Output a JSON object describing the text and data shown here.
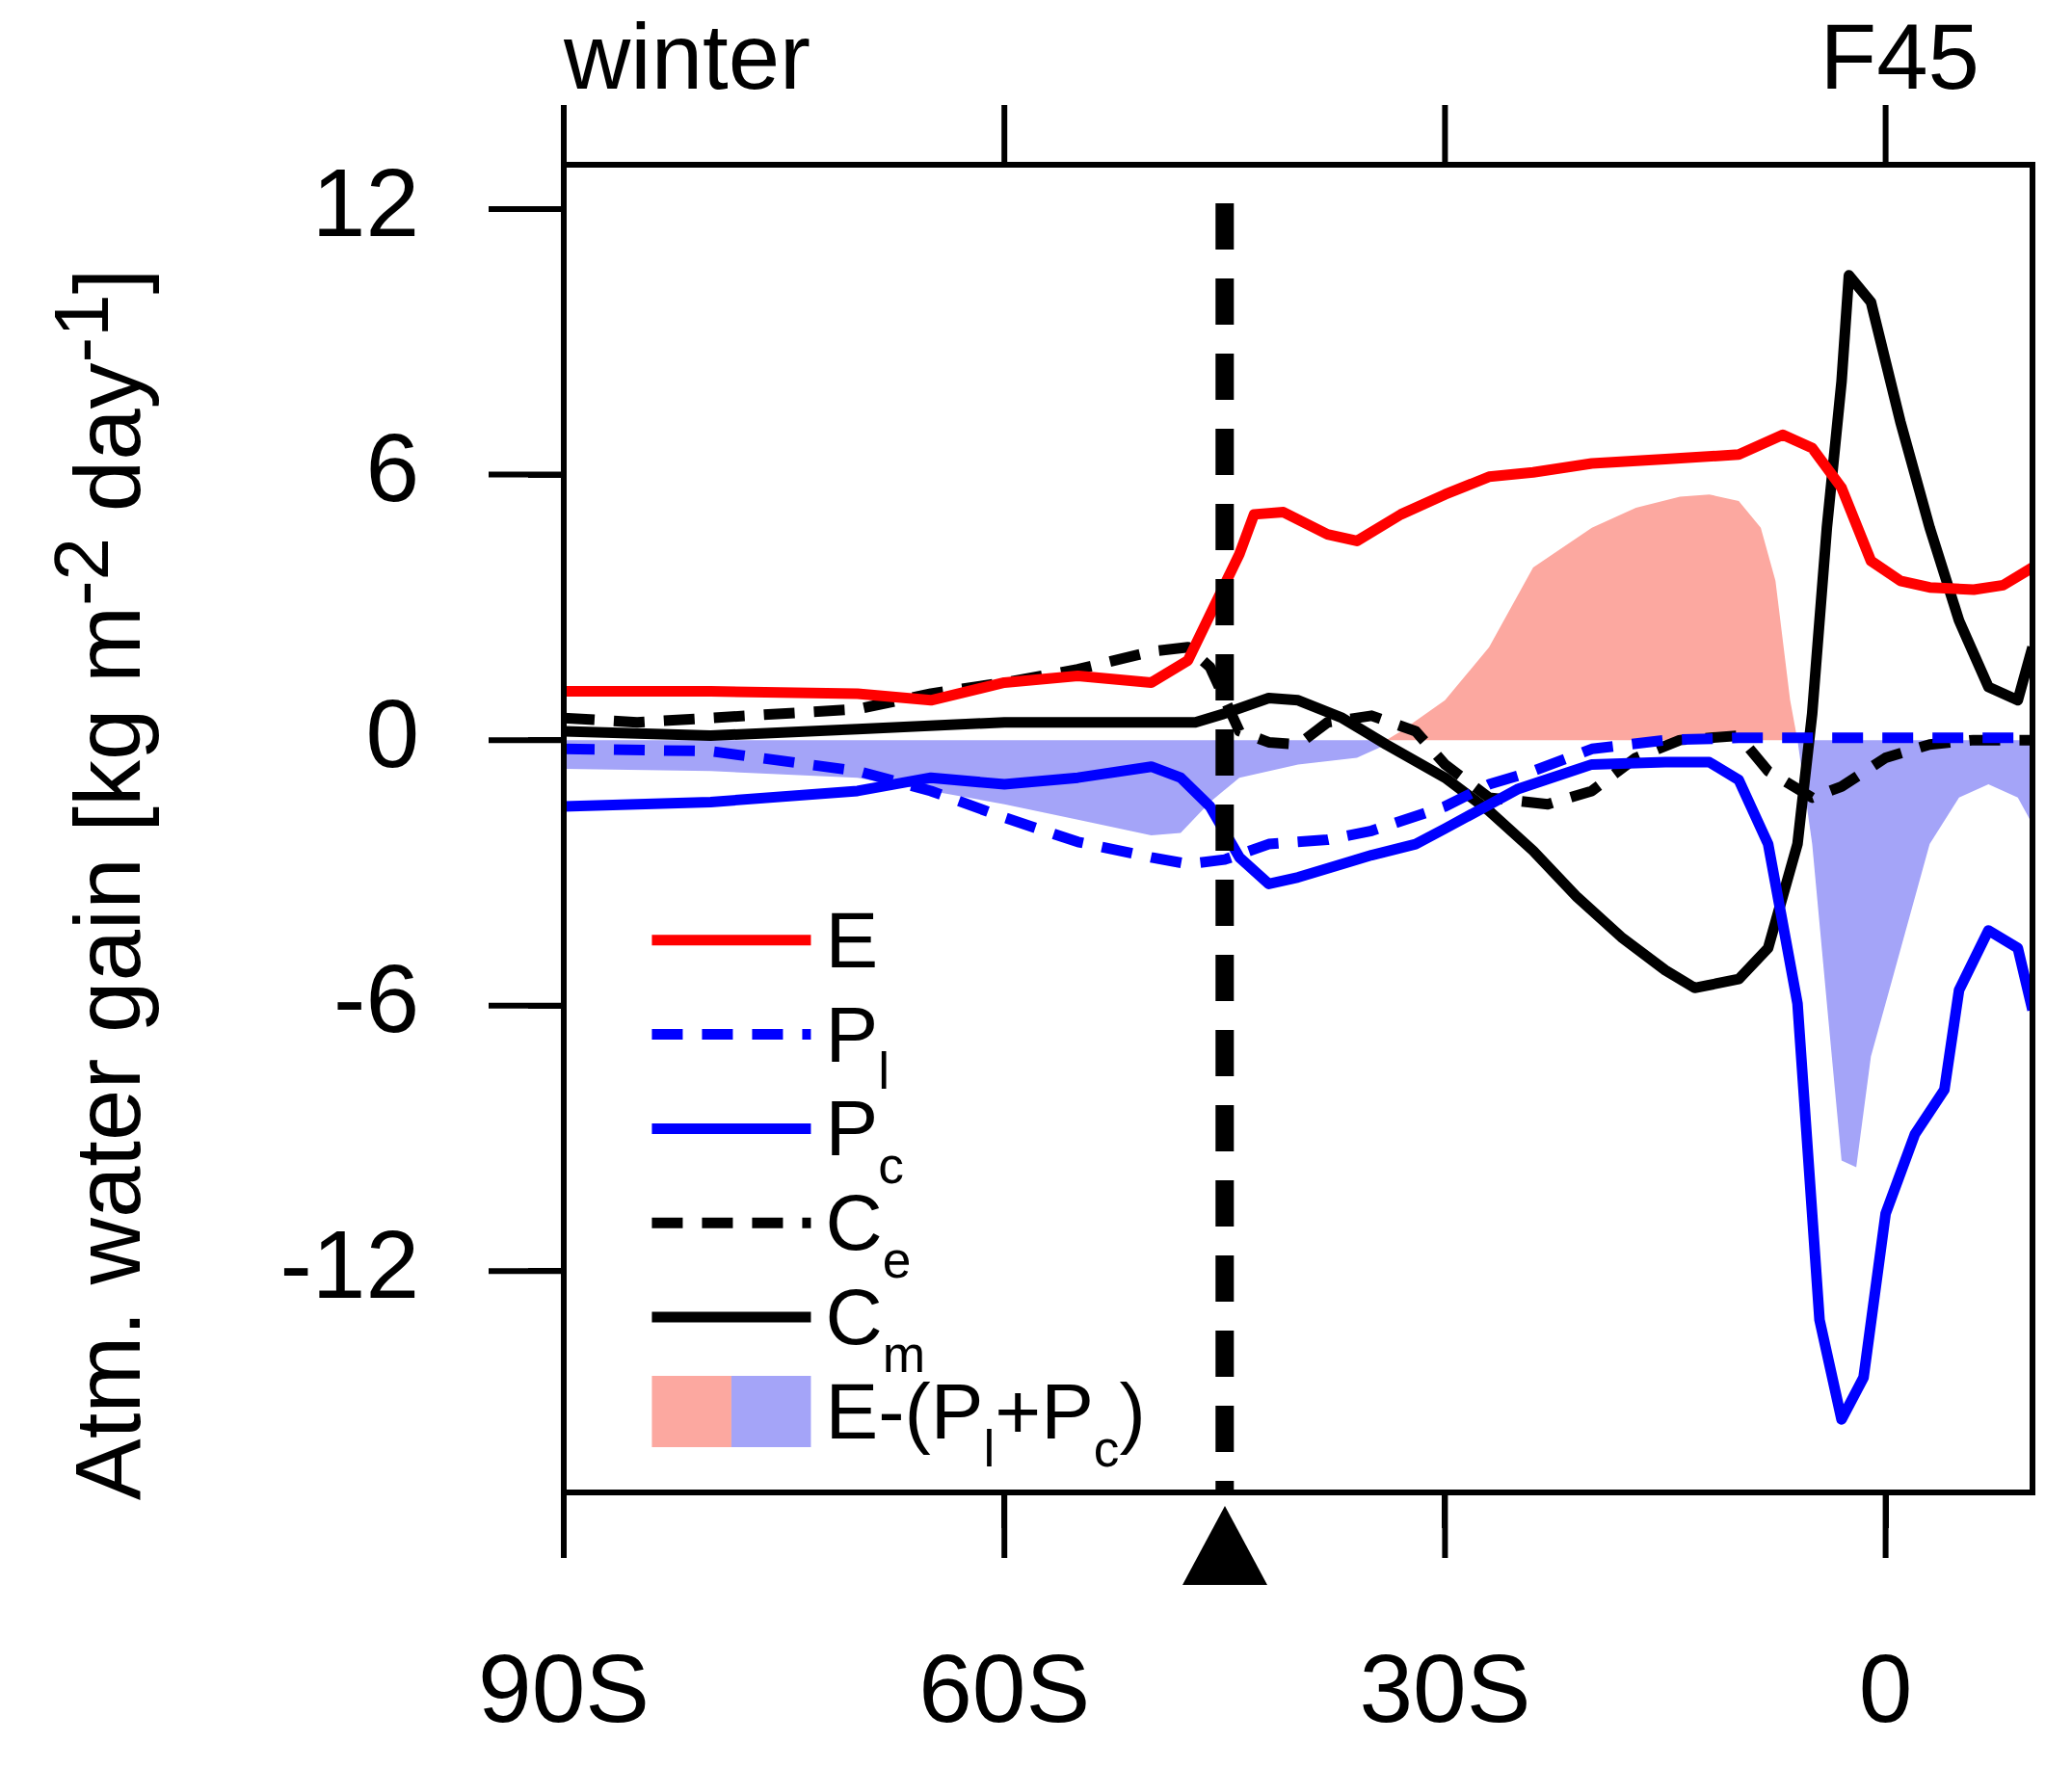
{
  "chart_data": {
    "type": "line",
    "title": "winter",
    "annotations": [
      "F45"
    ],
    "ylabel": "Atm. water gain [kg m$^{-2}$ day$^{-1}$]",
    "xlim": [
      -90,
      10
    ],
    "ylim": [
      -17,
      13
    ],
    "xticks": [
      {
        "value": -90,
        "label": "90S"
      },
      {
        "value": -60,
        "label": "60S"
      },
      {
        "value": -30,
        "label": "30S"
      },
      0
    ],
    "yticks": [
      12,
      6,
      0,
      -6,
      -12
    ],
    "grid": false,
    "legend": "bottom left",
    "marker": "none",
    "ref_lines": [
      {
        "axis": "x",
        "value": -45,
        "color": "#000000",
        "line_style": "dashed"
      }
    ],
    "series": [
      {
        "name": "E",
        "color": "#ff0000",
        "line_style": "solid",
        "x": [
          -90,
          -80,
          -70,
          -65,
          -60,
          -55,
          -50,
          -47.5,
          -44,
          -43,
          -41,
          -38,
          -36,
          -33,
          -30,
          -27,
          -24,
          -20,
          -15,
          -10,
          -7,
          -5,
          -3,
          -1,
          1,
          3,
          6,
          8,
          10
        ],
        "values": [
          1.1,
          1.1,
          1.05,
          0.9,
          1.3,
          1.45,
          1.3,
          1.8,
          4.2,
          5.1,
          5.15,
          4.65,
          4.5,
          5.1,
          5.55,
          5.95,
          6.05,
          6.25,
          6.35,
          6.45,
          6.9,
          6.6,
          5.7,
          4.05,
          3.6,
          3.45,
          3.4,
          3.5,
          3.9
        ]
      },
      {
        "name": "P$_{l}$",
        "color": "#0000ff",
        "line_style": "dashed",
        "x": [
          -90,
          -80,
          -70,
          -65,
          -60,
          -55,
          -50,
          -47.5,
          -45,
          -42,
          -38,
          -35,
          -30,
          -27,
          -24,
          -20,
          -15,
          -10,
          0,
          10
        ],
        "values": [
          -0.2,
          -0.25,
          -0.7,
          -1.15,
          -1.75,
          -2.3,
          -2.65,
          -2.8,
          -2.7,
          -2.35,
          -2.25,
          -2.05,
          -1.5,
          -1.0,
          -0.7,
          -0.2,
          0,
          0.05,
          0.05,
          0.05
        ]
      },
      {
        "name": "P$_{c}$",
        "color": "#0000ff",
        "line_style": "solid",
        "x": [
          -90,
          -80,
          -70,
          -65,
          -60,
          -55,
          -50,
          -48,
          -46,
          -44,
          -42,
          -40,
          -37,
          -35,
          -32,
          -30,
          -25,
          -20,
          -15,
          -12,
          -10,
          -8,
          -6,
          -4.5,
          -3,
          -1.5,
          0,
          2,
          4,
          5,
          7,
          9,
          10
        ],
        "values": [
          -1.5,
          -1.4,
          -1.15,
          -0.85,
          -1.0,
          -0.85,
          -0.6,
          -0.85,
          -1.5,
          -2.65,
          -3.25,
          -3.1,
          -2.8,
          -2.6,
          -2.35,
          -2.0,
          -1.1,
          -0.55,
          -0.5,
          -0.5,
          -0.9,
          -2.35,
          -5.95,
          -13.1,
          -15.35,
          -14.4,
          -10.7,
          -8.9,
          -7.9,
          -5.65,
          -4.3,
          -4.7,
          -6.1
        ]
      },
      {
        "name": "C$_{e}$",
        "color": "#000000",
        "line_style": "dashed",
        "x": [
          -90,
          -85,
          -80,
          -70,
          -65,
          -60,
          -55,
          -50,
          -47.5,
          -46,
          -44,
          -42,
          -40,
          -38,
          -35,
          -32,
          -30,
          -27,
          -23,
          -20,
          -17,
          -14,
          -10,
          -8,
          -5,
          -3,
          0,
          3,
          6,
          10
        ],
        "values": [
          0.5,
          0.4,
          0.5,
          0.7,
          1.05,
          1.3,
          1.6,
          2.0,
          2.1,
          1.65,
          0.2,
          -0.05,
          -0.1,
          0.4,
          0.55,
          0.2,
          -0.55,
          -1.3,
          -1.45,
          -1.15,
          -0.4,
          0,
          0.1,
          -0.7,
          -1.3,
          -1.05,
          -0.4,
          -0.1,
          0,
          0
        ]
      },
      {
        "name": "C$_{m}$",
        "color": "#000000",
        "line_style": "solid",
        "x": [
          -90,
          -80,
          -70,
          -60,
          -50,
          -47,
          -45,
          -42,
          -40,
          -37,
          -34,
          -30,
          -27,
          -24,
          -21,
          -18,
          -15,
          -13,
          -10,
          -8,
          -6,
          -5,
          -4,
          -3,
          -2.5,
          -1,
          1,
          3,
          5,
          7,
          9,
          10
        ],
        "values": [
          0.2,
          0.1,
          0.25,
          0.4,
          0.4,
          0.4,
          0.6,
          0.95,
          0.9,
          0.5,
          -0.1,
          -0.85,
          -1.6,
          -2.5,
          -3.55,
          -4.45,
          -5.2,
          -5.6,
          -5.4,
          -4.7,
          -2.35,
          0.6,
          4.8,
          8.1,
          10.5,
          9.9,
          7.2,
          4.8,
          2.7,
          1.2,
          0.9,
          2.1
        ]
      },
      {
        "name": "E-(P$_{l}$+P$_{c}$)",
        "type": "area",
        "color": "#fca8a0",
        "x": [
          -34,
          -33,
          -30,
          -27,
          -24,
          -20,
          -17,
          -14,
          -12,
          -10,
          -8.5,
          -7.5,
          -6.5,
          -6
        ],
        "values": [
          0,
          0.2,
          0.9,
          2.1,
          3.9,
          4.8,
          5.25,
          5.5,
          5.55,
          5.4,
          4.8,
          3.6,
          0.9,
          0
        ]
      },
      {
        "type": "area",
        "color": "#a4a4f8",
        "x": [
          -90,
          -80,
          -70,
          -60,
          -55,
          -50,
          -48,
          -46,
          -44,
          -40,
          -36,
          -34,
          -33,
          -6,
          -5,
          -4,
          -3,
          -2,
          -1,
          1,
          3,
          5,
          7,
          9,
          10
        ],
        "values": [
          -0.65,
          -0.7,
          -0.85,
          -1.45,
          -1.8,
          -2.15,
          -2.1,
          -1.4,
          -0.85,
          -0.55,
          -0.4,
          -0.1,
          null,
          0,
          -2.35,
          -5.95,
          -9.5,
          -9.65,
          -7.15,
          -4.75,
          -2.35,
          -1.3,
          -1.0,
          -1.3,
          -1.9
        ]
      }
    ]
  }
}
